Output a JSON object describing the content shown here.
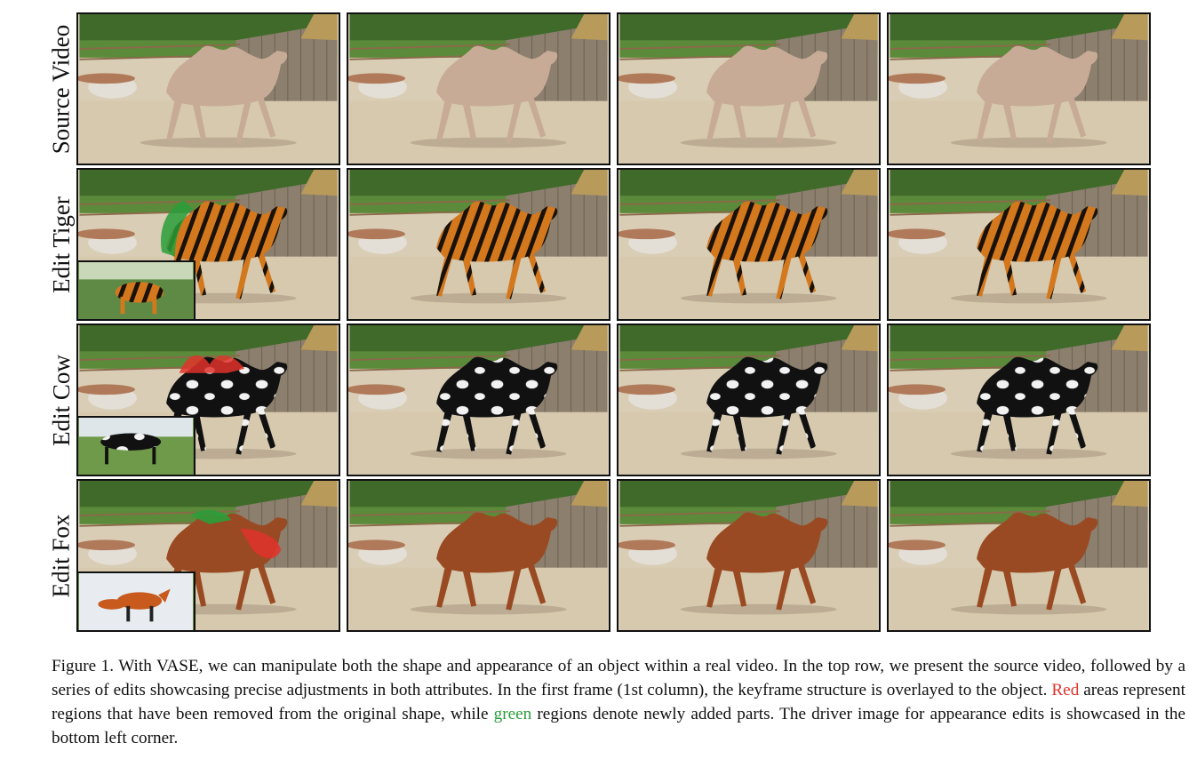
{
  "figure": {
    "rows": [
      {
        "label": "Source Video",
        "subject": "camel",
        "inset": null
      },
      {
        "label": "Edit Tiger",
        "subject": "tiger",
        "inset": "tiger"
      },
      {
        "label": "Edit Cow",
        "subject": "cow",
        "inset": "cow"
      },
      {
        "label": "Edit Fox",
        "subject": "fox",
        "inset": "fox"
      }
    ],
    "colors": {
      "red_highlight": "#e0332a",
      "green_highlight": "#2a9d3a"
    }
  },
  "caption": {
    "part1": "Figure 1. With VASE, we can manipulate both the shape and appearance of an object within a real video. In the top row, we present the source video, followed by a series of edits showcasing precise adjustments in both attributes. In the first frame (1st column), the keyframe structure is overlayed to the object. ",
    "red_word": "Red",
    "part2": " areas represent regions that have been removed from the original shape, while ",
    "green_word": "green",
    "part3": " regions denote newly added parts. The driver image for appearance edits is showcased in the bottom left corner."
  }
}
